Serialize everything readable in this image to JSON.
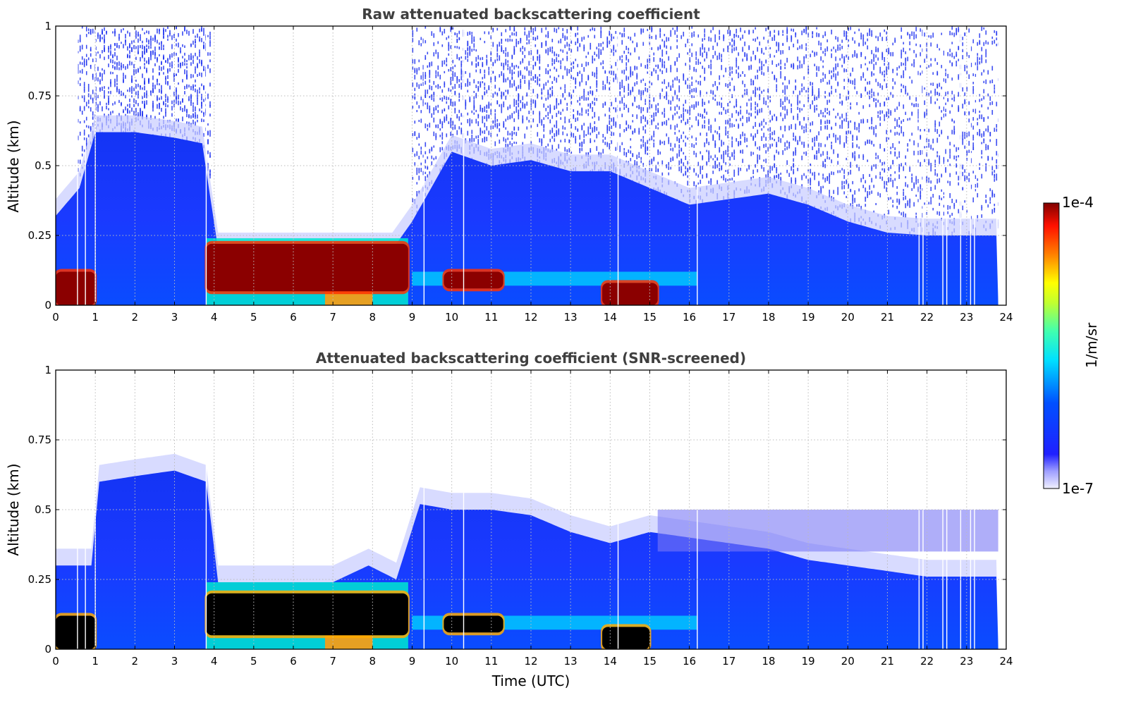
{
  "colors": {
    "white_cloudfree": "#ffffff",
    "screened_saturated": "#000000",
    "grid": "#bbbbbb",
    "title": "#3f3f3f"
  },
  "chart_data": [
    {
      "type": "heatmap",
      "title": "Raw attenuated backscattering coefficient",
      "xlabel": "",
      "ylabel": "Altitude (km)",
      "xlim": [
        0,
        24
      ],
      "ylim": [
        0,
        1
      ],
      "x_ticks": [
        "0",
        "1",
        "2",
        "3",
        "4",
        "5",
        "6",
        "7",
        "8",
        "9",
        "10",
        "11",
        "12",
        "13",
        "14",
        "15",
        "16",
        "17",
        "18",
        "19",
        "20",
        "21",
        "22",
        "23",
        "24"
      ],
      "y_ticks": [
        "0",
        "0.25",
        "0.5",
        "0.75",
        "1"
      ],
      "grid": true,
      "data_end_hour": 23.8,
      "noise_top_km": [
        0.32,
        0.42,
        0.62,
        0.62,
        0.6,
        0.58,
        0.2,
        0.2,
        0.2,
        0.2,
        0.2,
        0.2,
        0.3,
        0.55,
        0.5,
        0.52,
        0.48,
        0.48,
        0.42,
        0.36,
        0.38,
        0.4,
        0.36,
        0.3,
        0.26,
        0.25,
        0.25
      ],
      "noise_top_hours": [
        0,
        0.6,
        1,
        2,
        3,
        3.7,
        4.1,
        5,
        6,
        7,
        7.8,
        8.5,
        9,
        10,
        11,
        12,
        13,
        14,
        15,
        16,
        17,
        18,
        19,
        20,
        21,
        22,
        23.8
      ],
      "saturated_layer_segments": [
        {
          "start": 0.0,
          "end": 1.0,
          "base_km": 0.0,
          "top_km": 0.12
        },
        {
          "start": 3.8,
          "end": 8.9,
          "base_km": 0.05,
          "top_km": 0.22
        },
        {
          "start": 9.8,
          "end": 11.3,
          "base_km": 0.06,
          "top_km": 0.12
        },
        {
          "start": 13.8,
          "end": 15.2,
          "base_km": 0.0,
          "top_km": 0.08
        }
      ],
      "colorbar": {
        "min_label": "1e-7",
        "max_label": "1e-4",
        "unit": "1/m/sr",
        "scale": "log"
      }
    },
    {
      "type": "heatmap",
      "title": "Attenuated backscattering coefficient (SNR-screened)",
      "xlabel": "Time (UTC)",
      "ylabel": "Altitude (km)",
      "xlim": [
        0,
        24
      ],
      "ylim": [
        0,
        1
      ],
      "x_ticks": [
        "0",
        "1",
        "2",
        "3",
        "4",
        "5",
        "6",
        "7",
        "8",
        "9",
        "10",
        "11",
        "12",
        "13",
        "14",
        "15",
        "16",
        "17",
        "18",
        "19",
        "20",
        "21",
        "22",
        "23",
        "24"
      ],
      "y_ticks": [
        "0",
        "0.25",
        "0.5",
        "0.75",
        "1"
      ],
      "grid": true,
      "data_end_hour": 23.8,
      "boundary_layer_top_km": [
        0.3,
        0.3,
        0.6,
        0.62,
        0.64,
        0.6,
        0.24,
        0.24,
        0.24,
        0.24,
        0.3,
        0.25,
        0.52,
        0.5,
        0.5,
        0.48,
        0.42,
        0.38,
        0.42,
        0.4,
        0.38,
        0.36,
        0.32,
        0.3,
        0.28,
        0.26,
        0.26
      ],
      "boundary_layer_hours": [
        0,
        0.9,
        1.1,
        2,
        3,
        3.8,
        4.1,
        5,
        6,
        7,
        7.9,
        8.6,
        9.2,
        10,
        11,
        12,
        13,
        14,
        15,
        16,
        17,
        18,
        19,
        20,
        21,
        22,
        23.8
      ],
      "saturated_layer_segments": [
        {
          "start": 0.0,
          "end": 1.0,
          "base_km": 0.0,
          "top_km": 0.12
        },
        {
          "start": 3.8,
          "end": 8.9,
          "base_km": 0.05,
          "top_km": 0.2
        },
        {
          "start": 9.8,
          "end": 11.3,
          "base_km": 0.06,
          "top_km": 0.12
        },
        {
          "start": 13.8,
          "end": 15.0,
          "base_km": 0.0,
          "top_km": 0.08
        }
      ]
    }
  ]
}
